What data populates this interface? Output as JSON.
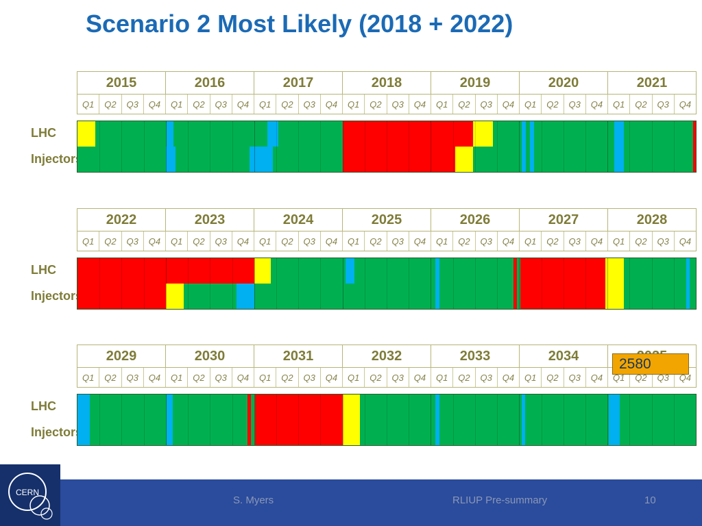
{
  "slide": {
    "title": "Scenario 2 Most Likely (2018 + 2022)"
  },
  "labels": {
    "lhc": "LHC",
    "injectors": "Injectors",
    "quarters": [
      "Q1",
      "Q2",
      "Q3",
      "Q4"
    ]
  },
  "callout": {
    "value": "2580"
  },
  "footer": {
    "author": "S. Myers",
    "presentation": "RLIUP Pre-summary",
    "page": "10",
    "logo_text": "CERN"
  },
  "colors": {
    "title_blue": "#1B6AB5",
    "olive_text": "#7E7C38",
    "grid_olive": "#B5B578",
    "footer_blue": "#2B4C9C",
    "logo_navy": "#15306B",
    "callout_orange": "#F2A500",
    "states": {
      "green": "#00B050",
      "red": "#FF0000",
      "yellow": "#FFFF00",
      "blue": "#00B0F0"
    }
  },
  "chart_data": {
    "type": "heatmap",
    "subtype": "gantt-schedule-timeline",
    "title": "Scenario 2 Most Likely (2018 + 2022)",
    "x_unit": "quarters from band start (4 quarters per year)",
    "row_labels": [
      "LHC",
      "Injectors"
    ],
    "state_colors": {
      "green": "#00B050",
      "red": "#FF0000",
      "yellow": "#FFFF00",
      "blue": "#00B0F0"
    },
    "bands": [
      {
        "years": [
          "2015",
          "2016",
          "2017",
          "2018",
          "2019",
          "2020",
          "2021"
        ],
        "rows": [
          {
            "label": "LHC",
            "segments": [
              [
                0,
                0.8,
                "yellow"
              ],
              [
                0.8,
                4.05,
                "green"
              ],
              [
                4.05,
                4.35,
                "blue"
              ],
              [
                4.35,
                8.6,
                "green"
              ],
              [
                8.6,
                9.1,
                "blue"
              ],
              [
                9.1,
                12,
                "green"
              ],
              [
                12,
                17.9,
                "red"
              ],
              [
                17.9,
                18.8,
                "yellow"
              ],
              [
                18.8,
                20.12,
                "green"
              ],
              [
                20.12,
                20.3,
                "blue"
              ],
              [
                20.3,
                20.5,
                "green"
              ],
              [
                20.5,
                20.68,
                "blue"
              ],
              [
                20.68,
                24.3,
                "green"
              ],
              [
                24.3,
                24.75,
                "blue"
              ],
              [
                24.75,
                27.88,
                "green"
              ],
              [
                27.88,
                28,
                "red"
              ]
            ]
          },
          {
            "label": "Injectors",
            "segments": [
              [
                0,
                4,
                "green"
              ],
              [
                4,
                4.45,
                "blue"
              ],
              [
                4.45,
                7.8,
                "green"
              ],
              [
                7.8,
                8.85,
                "blue"
              ],
              [
                8.85,
                12,
                "green"
              ],
              [
                12,
                17.1,
                "red"
              ],
              [
                17.1,
                17.9,
                "yellow"
              ],
              [
                17.9,
                20.12,
                "green"
              ],
              [
                20.12,
                20.3,
                "blue"
              ],
              [
                20.3,
                20.5,
                "green"
              ],
              [
                20.5,
                20.68,
                "blue"
              ],
              [
                20.68,
                24.3,
                "green"
              ],
              [
                24.3,
                24.75,
                "blue"
              ],
              [
                24.75,
                27.88,
                "green"
              ],
              [
                27.88,
                28,
                "red"
              ]
            ]
          }
        ]
      },
      {
        "years": [
          "2022",
          "2023",
          "2024",
          "2025",
          "2026",
          "2027",
          "2028"
        ],
        "rows": [
          {
            "label": "LHC",
            "segments": [
              [
                0,
                8,
                "red"
              ],
              [
                8,
                8.75,
                "yellow"
              ],
              [
                8.75,
                12.15,
                "green"
              ],
              [
                12.15,
                12.55,
                "blue"
              ],
              [
                12.55,
                16.2,
                "green"
              ],
              [
                16.2,
                16.4,
                "blue"
              ],
              [
                16.4,
                19.75,
                "green"
              ],
              [
                19.75,
                19.9,
                "red"
              ],
              [
                19.9,
                20.05,
                "green"
              ],
              [
                20.05,
                23.9,
                "red"
              ],
              [
                23.9,
                24.75,
                "yellow"
              ],
              [
                24.75,
                27.55,
                "green"
              ],
              [
                27.55,
                27.72,
                "blue"
              ],
              [
                27.72,
                28,
                "green"
              ]
            ]
          },
          {
            "label": "Injectors",
            "segments": [
              [
                0,
                4,
                "red"
              ],
              [
                4,
                4.8,
                "yellow"
              ],
              [
                4.8,
                7.2,
                "green"
              ],
              [
                7.2,
                8,
                "blue"
              ],
              [
                8,
                16.2,
                "green"
              ],
              [
                16.2,
                16.4,
                "blue"
              ],
              [
                16.4,
                19.75,
                "green"
              ],
              [
                19.75,
                19.9,
                "red"
              ],
              [
                19.9,
                20.05,
                "green"
              ],
              [
                20.05,
                23.9,
                "red"
              ],
              [
                23.9,
                24.75,
                "yellow"
              ],
              [
                24.75,
                27.55,
                "green"
              ],
              [
                27.55,
                27.72,
                "blue"
              ],
              [
                27.72,
                28,
                "green"
              ]
            ]
          }
        ]
      },
      {
        "years": [
          "2029",
          "2030",
          "2031",
          "2032",
          "2033",
          "2034",
          "2035"
        ],
        "rows": [
          {
            "label": "LHC",
            "segments": [
              [
                0,
                0.55,
                "blue"
              ],
              [
                0.55,
                4.05,
                "green"
              ],
              [
                4.05,
                4.3,
                "blue"
              ],
              [
                4.3,
                7.7,
                "green"
              ],
              [
                7.7,
                7.85,
                "red"
              ],
              [
                7.85,
                8.05,
                "green"
              ],
              [
                8.05,
                12,
                "red"
              ],
              [
                12,
                12.8,
                "yellow"
              ],
              [
                12.8,
                16.2,
                "green"
              ],
              [
                16.2,
                16.38,
                "blue"
              ],
              [
                16.38,
                20.1,
                "green"
              ],
              [
                20.1,
                20.28,
                "blue"
              ],
              [
                20.28,
                24.05,
                "green"
              ],
              [
                24.05,
                24.55,
                "blue"
              ],
              [
                24.55,
                28,
                "green"
              ]
            ]
          },
          {
            "label": "Injectors",
            "segments": [
              [
                0,
                0.55,
                "blue"
              ],
              [
                0.55,
                4.05,
                "green"
              ],
              [
                4.05,
                4.3,
                "blue"
              ],
              [
                4.3,
                7.7,
                "green"
              ],
              [
                7.7,
                7.85,
                "red"
              ],
              [
                7.85,
                8.05,
                "green"
              ],
              [
                8.05,
                12,
                "red"
              ],
              [
                12,
                12.8,
                "yellow"
              ],
              [
                12.8,
                16.2,
                "green"
              ],
              [
                16.2,
                16.38,
                "blue"
              ],
              [
                16.38,
                20.1,
                "green"
              ],
              [
                20.1,
                20.28,
                "blue"
              ],
              [
                20.28,
                24.05,
                "green"
              ],
              [
                24.05,
                24.55,
                "blue"
              ],
              [
                24.55,
                28,
                "green"
              ]
            ]
          }
        ]
      }
    ]
  }
}
